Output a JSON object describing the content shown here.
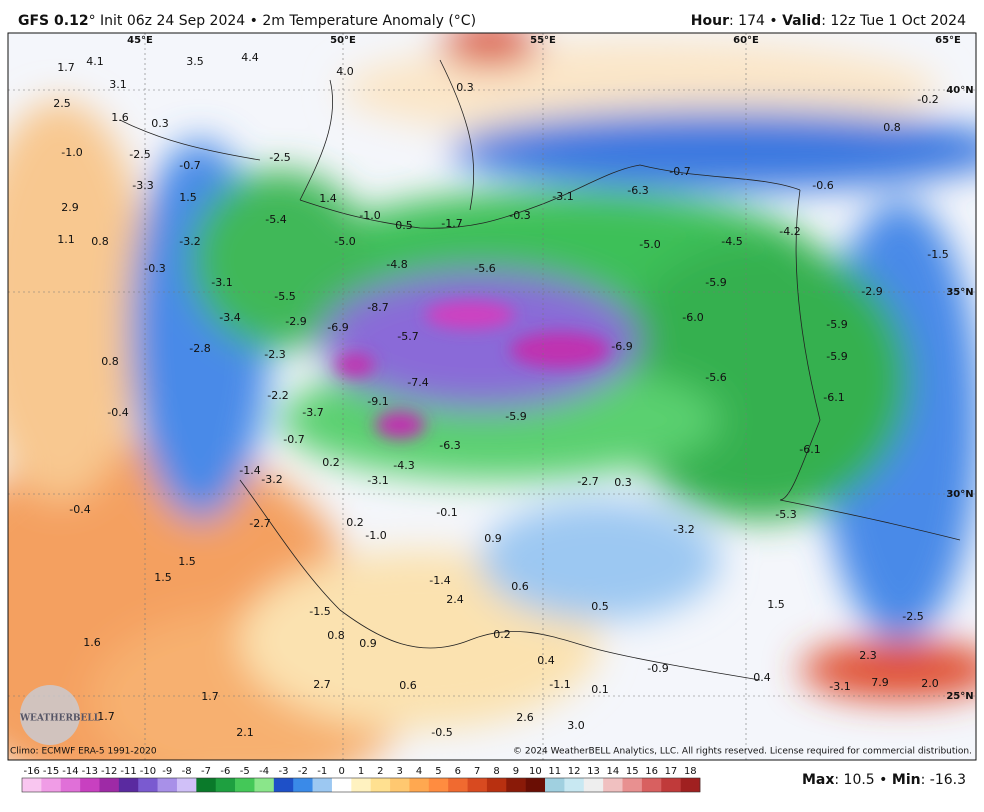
{
  "header": {
    "model": "GFS 0.12",
    "title_rest": "° Init 06z 24 Sep 2024 • 2m Temperature Anomaly (°C)",
    "hour_key": "Hour",
    "hour_rest": ": 174 • ",
    "valid_key": "Valid",
    "valid_rest": ": 12z Tue 1 Oct 2024"
  },
  "longitude_labels": [
    "45°E",
    "50°E",
    "55°E",
    "60°E",
    "65°E"
  ],
  "latitude_labels": [
    "40°N",
    "35°N",
    "30°N",
    "25°N"
  ],
  "map_labels": [
    "1.7",
    "4.1",
    "3.1",
    "3.5",
    "4.4",
    "4.0",
    "0.3",
    "2.5",
    "1.6",
    "0.3",
    "-1.0",
    "-2.5",
    "-0.7",
    "-2.5",
    "-3.3",
    "1.5",
    "1.4",
    "2.9",
    "-5.4",
    "-1.0",
    "0.5",
    "-1.7",
    "-0.3",
    "-3.1",
    "-6.3",
    "-0.7",
    "-0.6",
    "0.8",
    "-0.2",
    "1.1",
    "0.8",
    "-3.2",
    "-5.0",
    "-4.8",
    "-5.6",
    "-5.0",
    "-4.5",
    "-4.2",
    "-1.5",
    "-0.3",
    "-3.1",
    "-5.5",
    "-8.7",
    "-2.9",
    "-5.9",
    "-6.0",
    "-3.4",
    "-2.9",
    "-6.9",
    "-5.7",
    "-6.9",
    "-5.9",
    "-5.9",
    "-2.8",
    "-2.3",
    "0.8",
    "-7.4",
    "-5.6",
    "-6.1",
    "-2.2",
    "-9.1",
    "-3.7",
    "-0.4",
    "-5.9",
    "-0.7",
    "-6.3",
    "-6.1",
    "0.2",
    "-1.4",
    "-4.3",
    "-3.2",
    "-3.1",
    "-2.7",
    "0.3",
    "-0.4",
    "-0.1",
    "-5.3",
    "-3.2",
    "-2.7",
    "0.2",
    "-1.0",
    "0.9",
    "1.5",
    "1.5",
    "-1.4",
    "0.6",
    "2.4",
    "1.5",
    "0.5",
    "-1.5",
    "-2.5",
    "0.8",
    "0.2",
    "0.9",
    "1.6",
    "0.4",
    "2.3",
    "-0.9",
    "0.4",
    "7.9",
    "2.0",
    "-3.1",
    "-1.1",
    "0.1",
    "1.7",
    "2.7",
    "0.6",
    "1.7",
    "2.6",
    "3.0",
    "2.1",
    "-0.5"
  ],
  "footer": {
    "climo": "Climo: ECMWF ERA-5 1991-2020",
    "copyright": "© 2024 WeatherBELL Analytics, LLC. All rights reserved. License required for commercial distribution.",
    "logo": "WEATHERBELL",
    "max_key": "Max",
    "max_sep": ": ",
    "max_value": 10.5,
    "mid": " • ",
    "min_key": "Min",
    "min_sep": ": ",
    "min_value": -16.3
  },
  "colorbar": {
    "ticks": [
      -16,
      -15,
      -14,
      -13,
      -12,
      -11,
      -10,
      -9,
      -8,
      -7,
      -6,
      -5,
      -4,
      -3,
      -2,
      -1,
      0,
      1,
      2,
      3,
      4,
      5,
      6,
      7,
      8,
      9,
      10,
      11,
      12,
      13,
      14,
      15,
      16,
      17,
      18
    ],
    "colors": [
      "#f9c6f0",
      "#f09ce6",
      "#e070d8",
      "#c840c0",
      "#9e2aa6",
      "#5a2aa0",
      "#7a5ad0",
      "#a890e8",
      "#d0c0f8",
      "#0a7a2a",
      "#1ea040",
      "#44c858",
      "#8ae68a",
      "#1e50c8",
      "#3a8ae8",
      "#9cc8f2",
      "#ffffff",
      "#fff2c0",
      "#ffe090",
      "#ffc870",
      "#ffa850",
      "#ff8c40",
      "#f06a30",
      "#d84a20",
      "#b83010",
      "#8a1a08",
      "#6a0e04",
      "#a0d0e0",
      "#c8e8f2",
      "#eeeeee",
      "#f0c0c0",
      "#e89090",
      "#d86060",
      "#c03a3a",
      "#a02020"
    ]
  }
}
